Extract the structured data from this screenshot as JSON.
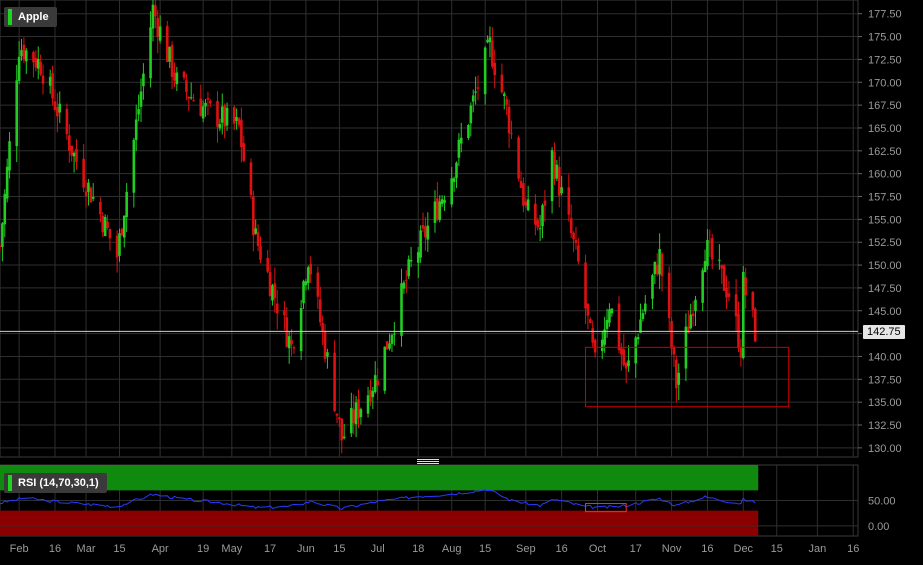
{
  "colors": {
    "background": "#000000",
    "grid": "#2f2f2f",
    "axis_text": "#9a9a9a",
    "up": "#22cc22",
    "down": "#dd1111",
    "box": "#cc0000",
    "rsi_line": "#2a39ff",
    "overbought": "#0f8a0f",
    "oversold": "#8a0000"
  },
  "symbol_label": "Apple",
  "rsi_label": "RSI (14,70,30,1)",
  "current_price": "142.75",
  "chart_data": [
    {
      "type": "candlestick",
      "title": "Apple",
      "ylim": [
        129,
        179
      ],
      "y_ticks": [
        "177.50",
        "175.00",
        "172.50",
        "170.00",
        "167.50",
        "165.00",
        "162.50",
        "160.00",
        "157.50",
        "155.00",
        "152.50",
        "150.00",
        "147.50",
        "145.00",
        "142.50",
        "140.00",
        "137.50",
        "135.00",
        "132.50",
        "130.00"
      ],
      "x_ticks": [
        "Feb",
        "16",
        "Mar",
        "15",
        "Apr",
        "19",
        "May",
        "17",
        "Jun",
        "15",
        "Jul",
        "18",
        "Aug",
        "15",
        "Sep",
        "16",
        "Oct",
        "17",
        "Nov",
        "16",
        "Dec",
        "15",
        "Jan",
        "16"
      ],
      "x_tick_dates": [
        "2022-02-01",
        "2022-02-16",
        "2022-03-01",
        "2022-03-15",
        "2022-04-01",
        "2022-04-19",
        "2022-05-01",
        "2022-05-17",
        "2022-06-01",
        "2022-06-15",
        "2022-07-01",
        "2022-07-18",
        "2022-08-01",
        "2022-08-15",
        "2022-09-01",
        "2022-09-16",
        "2022-10-01",
        "2022-10-17",
        "2022-11-01",
        "2022-11-16",
        "2022-12-01",
        "2022-12-15",
        "2023-01-01",
        "2023-01-16"
      ],
      "x_range": [
        "2022-01-24",
        "2023-01-18"
      ],
      "last_date": "2022-12-06",
      "close_path": [
        {
          "date": "2022-01-24",
          "close": 152
        },
        {
          "date": "2022-02-01",
          "close": 174
        },
        {
          "date": "2022-02-10",
          "close": 172
        },
        {
          "date": "2022-02-24",
          "close": 162
        },
        {
          "date": "2022-03-08",
          "close": 155
        },
        {
          "date": "2022-03-14",
          "close": 151
        },
        {
          "date": "2022-03-29",
          "close": 178
        },
        {
          "date": "2022-04-08",
          "close": 170
        },
        {
          "date": "2022-04-20",
          "close": 167
        },
        {
          "date": "2022-05-04",
          "close": 165
        },
        {
          "date": "2022-05-11",
          "close": 153
        },
        {
          "date": "2022-05-26",
          "close": 141
        },
        {
          "date": "2022-06-02",
          "close": 151
        },
        {
          "date": "2022-06-16",
          "close": 131
        },
        {
          "date": "2022-07-01",
          "close": 138
        },
        {
          "date": "2022-07-15",
          "close": 150
        },
        {
          "date": "2022-08-01",
          "close": 160
        },
        {
          "date": "2022-08-17",
          "close": 174
        },
        {
          "date": "2022-08-24",
          "close": 167
        },
        {
          "date": "2022-09-01",
          "close": 156
        },
        {
          "date": "2022-09-07",
          "close": 154
        },
        {
          "date": "2022-09-12",
          "close": 162
        },
        {
          "date": "2022-09-23",
          "close": 150
        },
        {
          "date": "2022-09-30",
          "close": 139
        },
        {
          "date": "2022-10-06",
          "close": 146
        },
        {
          "date": "2022-10-13",
          "close": 138
        },
        {
          "date": "2022-10-20",
          "close": 145
        },
        {
          "date": "2022-10-27",
          "close": 151
        },
        {
          "date": "2022-11-03",
          "close": 137
        },
        {
          "date": "2022-11-10",
          "close": 146
        },
        {
          "date": "2022-11-15",
          "close": 152
        },
        {
          "date": "2022-11-25",
          "close": 147
        },
        {
          "date": "2022-11-30",
          "close": 141
        },
        {
          "date": "2022-12-01",
          "close": 148
        },
        {
          "date": "2022-12-06",
          "close": 142.75
        }
      ],
      "annotation_box": {
        "x0": "2022-09-26",
        "x1": "2022-12-20",
        "y0": 134.5,
        "y1": 141
      }
    },
    {
      "type": "line",
      "title": "RSI (14,70,30,1)",
      "ylim": [
        -20,
        120
      ],
      "y_ticks": [
        "50.00",
        "0.00"
      ],
      "overbought": 70,
      "oversold": 30,
      "rsi_path": [
        {
          "date": "2022-01-24",
          "v": 45
        },
        {
          "date": "2022-02-03",
          "v": 55
        },
        {
          "date": "2022-02-16",
          "v": 48
        },
        {
          "date": "2022-03-01",
          "v": 43
        },
        {
          "date": "2022-03-14",
          "v": 38
        },
        {
          "date": "2022-03-29",
          "v": 62
        },
        {
          "date": "2022-04-12",
          "v": 52
        },
        {
          "date": "2022-04-26",
          "v": 46
        },
        {
          "date": "2022-05-11",
          "v": 36
        },
        {
          "date": "2022-05-25",
          "v": 38
        },
        {
          "date": "2022-06-03",
          "v": 48
        },
        {
          "date": "2022-06-16",
          "v": 34
        },
        {
          "date": "2022-07-01",
          "v": 48
        },
        {
          "date": "2022-07-18",
          "v": 58
        },
        {
          "date": "2022-08-01",
          "v": 63
        },
        {
          "date": "2022-08-16",
          "v": 72
        },
        {
          "date": "2022-08-26",
          "v": 50
        },
        {
          "date": "2022-09-07",
          "v": 40
        },
        {
          "date": "2022-09-13",
          "v": 52
        },
        {
          "date": "2022-09-26",
          "v": 38
        },
        {
          "date": "2022-10-03",
          "v": 36
        },
        {
          "date": "2022-10-13",
          "v": 40
        },
        {
          "date": "2022-10-27",
          "v": 54
        },
        {
          "date": "2022-11-03",
          "v": 40
        },
        {
          "date": "2022-11-15",
          "v": 57
        },
        {
          "date": "2022-11-25",
          "v": 48
        },
        {
          "date": "2022-11-30",
          "v": 44
        },
        {
          "date": "2022-12-01",
          "v": 52
        },
        {
          "date": "2022-12-06",
          "v": 46
        }
      ],
      "annotation_box": {
        "x0": "2022-09-26",
        "x1": "2022-10-13",
        "y0": 28,
        "y1": 44
      }
    }
  ]
}
